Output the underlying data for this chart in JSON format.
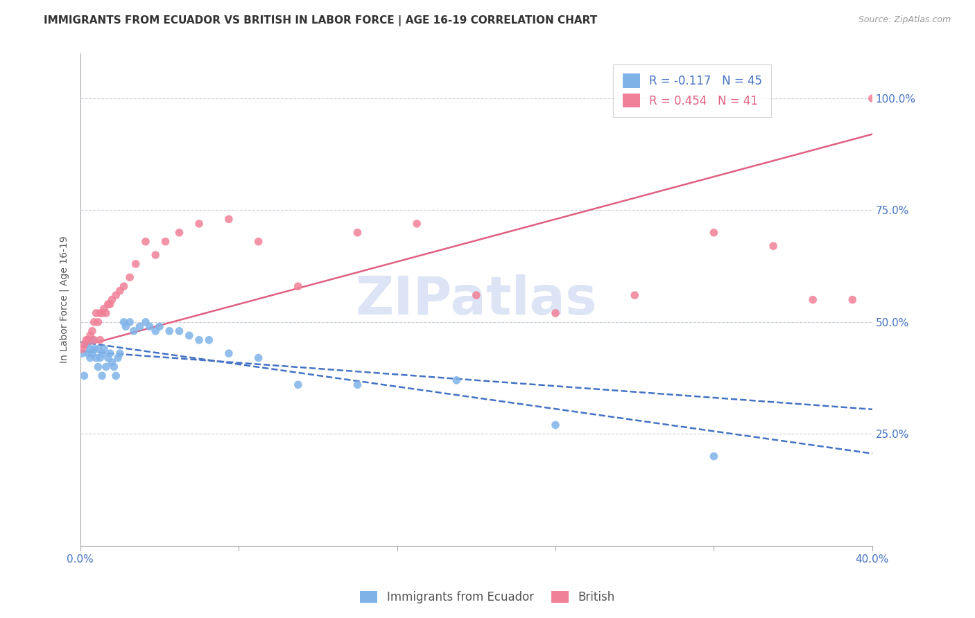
{
  "title": "IMMIGRANTS FROM ECUADOR VS BRITISH IN LABOR FORCE | AGE 16-19 CORRELATION CHART",
  "source": "Source: ZipAtlas.com",
  "ylabel": "In Labor Force | Age 16-19",
  "xlim": [
    0.0,
    0.4
  ],
  "ylim": [
    0.0,
    1.1
  ],
  "yticks": [
    0.25,
    0.5,
    0.75,
    1.0
  ],
  "ytick_labels": [
    "25.0%",
    "50.0%",
    "75.0%",
    "100.0%"
  ],
  "xticks": [
    0.0,
    0.08,
    0.16,
    0.24,
    0.32,
    0.4
  ],
  "xticklabels": [
    "0.0%",
    "",
    "",
    "",
    "",
    "40.0%"
  ],
  "ecuador_R": -0.117,
  "ecuador_N": 45,
  "british_R": 0.454,
  "british_N": 41,
  "ecuador_color": "#7fb3e8",
  "british_color": "#f08098",
  "trendline_ecuador_color": "#4472c4",
  "trendline_british_color": "#e06080",
  "watermark": "ZIPatlas",
  "watermark_color": "#dde4f5",
  "ecuador_x": [
    0.001,
    0.002,
    0.003,
    0.004,
    0.005,
    0.005,
    0.006,
    0.006,
    0.007,
    0.008,
    0.009,
    0.009,
    0.01,
    0.011,
    0.011,
    0.012,
    0.013,
    0.014,
    0.015,
    0.016,
    0.017,
    0.018,
    0.019,
    0.02,
    0.022,
    0.023,
    0.025,
    0.027,
    0.03,
    0.033,
    0.035,
    0.038,
    0.04,
    0.045,
    0.05,
    0.055,
    0.06,
    0.065,
    0.075,
    0.09,
    0.11,
    0.14,
    0.19,
    0.24,
    0.32
  ],
  "ecuador_y": [
    0.43,
    0.38,
    0.45,
    0.43,
    0.44,
    0.42,
    0.46,
    0.43,
    0.44,
    0.42,
    0.44,
    0.4,
    0.42,
    0.43,
    0.38,
    0.44,
    0.4,
    0.42,
    0.43,
    0.41,
    0.4,
    0.38,
    0.42,
    0.43,
    0.5,
    0.49,
    0.5,
    0.48,
    0.49,
    0.5,
    0.49,
    0.48,
    0.49,
    0.48,
    0.48,
    0.47,
    0.46,
    0.46,
    0.43,
    0.42,
    0.36,
    0.36,
    0.37,
    0.27,
    0.2
  ],
  "british_x": [
    0.001,
    0.002,
    0.003,
    0.004,
    0.005,
    0.006,
    0.007,
    0.007,
    0.008,
    0.009,
    0.01,
    0.01,
    0.011,
    0.012,
    0.013,
    0.014,
    0.015,
    0.016,
    0.018,
    0.02,
    0.022,
    0.025,
    0.028,
    0.033,
    0.038,
    0.043,
    0.05,
    0.06,
    0.075,
    0.09,
    0.11,
    0.14,
    0.17,
    0.2,
    0.24,
    0.28,
    0.32,
    0.35,
    0.37,
    0.39,
    0.4
  ],
  "british_y": [
    0.44,
    0.45,
    0.46,
    0.46,
    0.47,
    0.48,
    0.46,
    0.5,
    0.52,
    0.5,
    0.52,
    0.46,
    0.52,
    0.53,
    0.52,
    0.54,
    0.54,
    0.55,
    0.56,
    0.57,
    0.58,
    0.6,
    0.63,
    0.68,
    0.65,
    0.68,
    0.7,
    0.72,
    0.73,
    0.68,
    0.58,
    0.7,
    0.72,
    0.56,
    0.52,
    0.56,
    0.7,
    0.67,
    0.55,
    0.55,
    1.0
  ],
  "title_fontsize": 11,
  "source_fontsize": 9,
  "tick_fontsize": 11,
  "legend_fontsize": 12,
  "ylabel_fontsize": 10,
  "watermark_fontsize": 55
}
